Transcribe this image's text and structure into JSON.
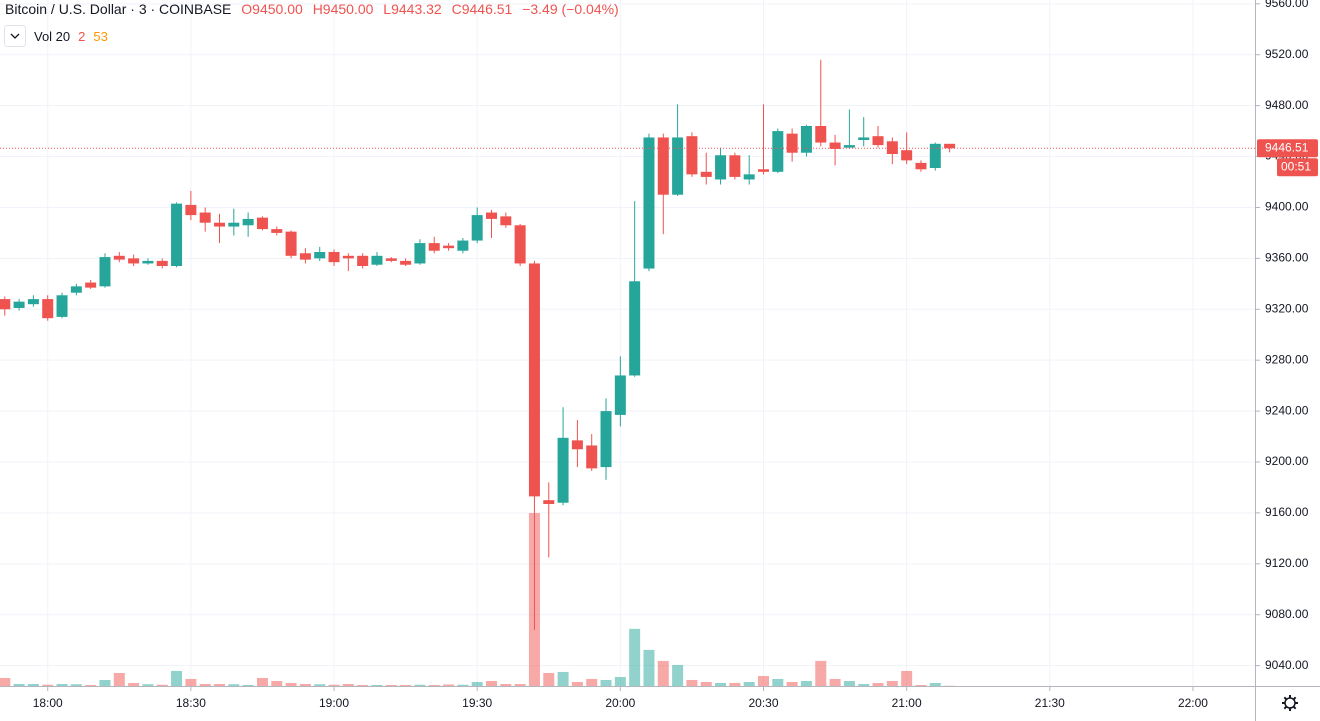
{
  "header": {
    "symbol": "Bitcoin / U.S. Dollar · 3 · COINBASE",
    "open": "O9450.00",
    "high": "H9450.00",
    "low": "L9443.32",
    "close": "C9446.51",
    "change": "−3.49 (−0.04%)"
  },
  "volume_legend": {
    "name": "Vol 20",
    "value": "2",
    "average": "53"
  },
  "countdown": "00:51",
  "chart_data": {
    "type": "candlestick",
    "x": [
      "17:51",
      "17:54",
      "17:57",
      "18:00",
      "18:03",
      "18:06",
      "18:09",
      "18:12",
      "18:15",
      "18:18",
      "18:21",
      "18:24",
      "18:27",
      "18:30",
      "18:33",
      "18:36",
      "18:39",
      "18:42",
      "18:45",
      "18:48",
      "18:51",
      "18:54",
      "18:57",
      "19:00",
      "19:03",
      "19:06",
      "19:09",
      "19:12",
      "19:15",
      "19:18",
      "19:21",
      "19:24",
      "19:27",
      "19:30",
      "19:33",
      "19:36",
      "19:39",
      "19:42",
      "19:45",
      "19:48",
      "19:51",
      "19:54",
      "19:57",
      "20:00",
      "20:03",
      "20:06",
      "20:09",
      "20:12",
      "20:15",
      "20:18",
      "20:21",
      "20:24",
      "20:27",
      "20:30",
      "20:33",
      "20:36",
      "20:39",
      "20:42",
      "20:45",
      "20:48",
      "20:51",
      "20:54",
      "20:57",
      "21:00",
      "21:03",
      "21:06",
      "21:09"
    ],
    "open": [
      9328,
      9321,
      9324,
      9328,
      9314,
      9333,
      9341,
      9338,
      9362,
      9360,
      9356,
      9358,
      9354,
      9402,
      9396,
      9388,
      9385,
      9386,
      9392,
      9383,
      9381,
      9364,
      9360,
      9365,
      9362,
      9362,
      9355,
      9360,
      9358,
      9356,
      9372,
      9370,
      9366,
      9374,
      9396,
      9393,
      9386,
      9356,
      9170,
      9168,
      9217,
      9213,
      9196,
      9237,
      9268,
      9352,
      9455,
      9410,
      9456,
      9428,
      9422,
      9441,
      9422,
      9430,
      9428,
      9458,
      9443,
      9464,
      9451,
      9447,
      9453,
      9456,
      9452,
      9445,
      9435,
      9431,
      9450
    ],
    "high": [
      9330,
      9328,
      9331,
      9331,
      9333,
      9340,
      9343,
      9364,
      9365,
      9363,
      9360,
      9360,
      9404,
      9413,
      9400,
      9395,
      9399,
      9396,
      9393,
      9385,
      9382,
      9368,
      9369,
      9367,
      9364,
      9364,
      9365,
      9361,
      9360,
      9375,
      9377,
      9372,
      9376,
      9400,
      9398,
      9396,
      9387,
      9358,
      9184,
      9243,
      9233,
      9222,
      9250,
      9283,
      9405,
      9458,
      9458,
      9481,
      9459,
      9443,
      9447,
      9443,
      9441,
      9481,
      9462,
      9462,
      9465,
      9516,
      9457,
      9477,
      9471,
      9464,
      9455,
      9459,
      9437,
      9451,
      9450
    ],
    "low": [
      9315,
      9319,
      9322,
      9311,
      9313,
      9331,
      9336,
      9337,
      9357,
      9354,
      9355,
      9352,
      9353,
      9390,
      9381,
      9372,
      9378,
      9377,
      9382,
      9378,
      9360,
      9356,
      9358,
      9354,
      9350,
      9352,
      9354,
      9357,
      9354,
      9355,
      9364,
      9366,
      9364,
      9372,
      9376,
      9384,
      9354,
      9068,
      9125,
      9166,
      9196,
      9193,
      9186,
      9228,
      9267,
      9350,
      9379,
      9409,
      9424,
      9418,
      9418,
      9422,
      9418,
      9426,
      9427,
      9436,
      9440,
      9448,
      9433,
      9446,
      9448,
      9447,
      9434,
      9434,
      9428,
      9429,
      9443.32
    ],
    "close": [
      9320,
      9326,
      9328,
      9313,
      9331,
      9338,
      9337,
      9361,
      9359,
      9356,
      9358,
      9354,
      9403,
      9394,
      9388,
      9385,
      9388,
      9391,
      9383,
      9380,
      9362,
      9359,
      9365,
      9357,
      9360,
      9354,
      9362,
      9358,
      9355,
      9372,
      9366,
      9368,
      9374,
      9394,
      9391,
      9386,
      9356,
      9173,
      9167,
      9219,
      9210,
      9195,
      9240,
      9268,
      9342,
      9455,
      9410,
      9455,
      9426,
      9424,
      9441,
      9424,
      9426,
      9428,
      9460,
      9443,
      9464,
      9451,
      9446,
      9449,
      9455,
      9449,
      9442,
      9437,
      9430,
      9450,
      9446.51
    ],
    "volume": [
      64,
      16,
      16,
      10,
      16,
      14,
      8,
      48,
      104,
      24,
      14,
      10,
      120,
      56,
      16,
      16,
      14,
      8,
      64,
      40,
      24,
      16,
      14,
      10,
      16,
      8,
      8,
      8,
      8,
      10,
      8,
      12,
      10,
      32,
      40,
      16,
      16,
      1380,
      104,
      112,
      32,
      56,
      48,
      72,
      456,
      288,
      200,
      168,
      48,
      32,
      24,
      24,
      32,
      80,
      56,
      32,
      40,
      200,
      56,
      40,
      16,
      24,
      40,
      120,
      8,
      24,
      2
    ],
    "up_color": "#26a69a",
    "down_color": "#ef5350",
    "xlim": [
      "17:50",
      "22:13"
    ],
    "xticks": [
      "18:00",
      "18:30",
      "19:00",
      "19:30",
      "20:00",
      "20:30",
      "21:00",
      "21:30",
      "22:00"
    ],
    "ylim": [
      9024,
      9563
    ],
    "yticks": [
      {
        "value": 9040,
        "label": "9040.00"
      },
      {
        "value": 9080,
        "label": "9080.00"
      },
      {
        "value": 9120,
        "label": "9120.00"
      },
      {
        "value": 9160,
        "label": "9160.00"
      },
      {
        "value": 9200,
        "label": "9200.00"
      },
      {
        "value": 9240,
        "label": "9240.00"
      },
      {
        "value": 9280,
        "label": "9280.00"
      },
      {
        "value": 9320,
        "label": "9320.00"
      },
      {
        "value": 9360,
        "label": "9360.00"
      },
      {
        "value": 9400,
        "label": "9400.00"
      },
      {
        "value": 9440,
        "label": "9440.00"
      },
      {
        "value": 9480,
        "label": "9480.00"
      },
      {
        "value": 9520,
        "label": "9520.00"
      },
      {
        "value": 9560,
        "label": "9560.00"
      }
    ],
    "grid": true
  }
}
